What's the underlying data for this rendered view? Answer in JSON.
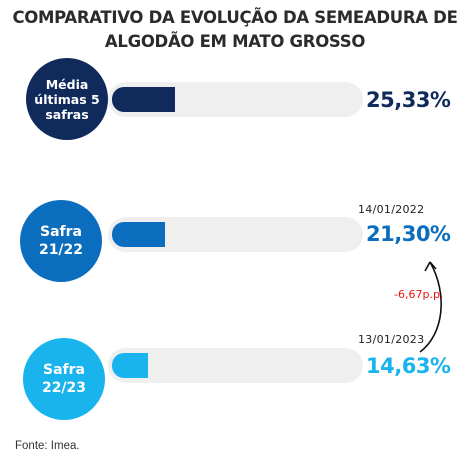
{
  "chart_data": {
    "type": "bar",
    "orientation": "horizontal",
    "title": "COMPARATIVO DA EVOLUÇÃO DA SEMEADURA DE\nALGODÃO EM MATO GROSSO",
    "categories": [
      "Média\núltimas 5\nsafras",
      "Safra\n21/22",
      "Safra\n22/23"
    ],
    "values": [
      25.33,
      21.3,
      14.63
    ],
    "value_labels": [
      "25,33%",
      "21,30%",
      "14,63%"
    ],
    "dates": [
      "",
      "14/01/2022",
      "13/01/2023"
    ],
    "colors": [
      "#102a5c",
      "#0b6dbd",
      "#19b3ee"
    ],
    "xlim": [
      0,
      100
    ],
    "annotation": "-6,67p.p.",
    "annotation_color": "#ee1111",
    "grid": false,
    "legend": "none"
  },
  "source": "Fonte: Imea."
}
